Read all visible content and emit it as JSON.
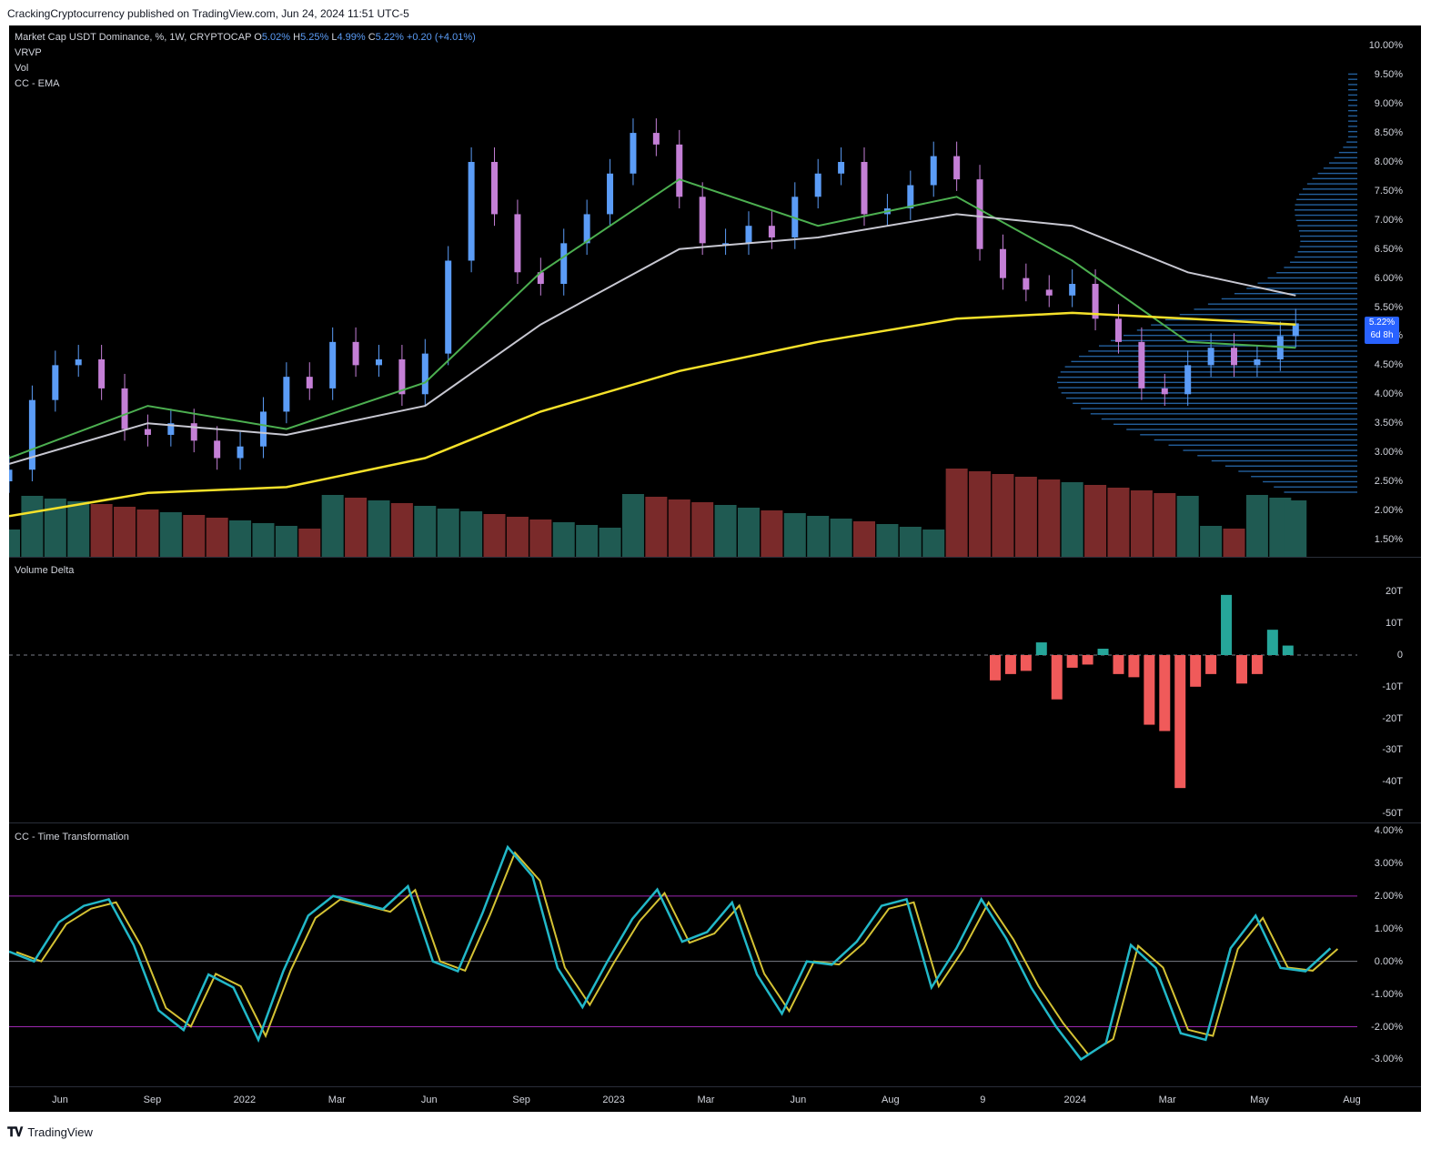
{
  "header": {
    "published": "CrackingCryptocurrency published on TradingView.com, Jun 24, 2024 11:51 UTC-5"
  },
  "main_legend": {
    "symbol": "Market Cap USDT Dominance, %, 1W, CRYPTOCAP",
    "o_label": "O",
    "o": "5.02%",
    "h_label": "H",
    "h": "5.25%",
    "l_label": "L",
    "l": "4.99%",
    "c_label": "C",
    "c": "5.22%",
    "chg": "+0.20 (+4.01%)",
    "indicators": [
      "VRVP",
      "Vol",
      "CC - EMA"
    ]
  },
  "price_box": {
    "price": "5.22%",
    "countdown": "6d 8h"
  },
  "panel2_title": "Volume Delta",
  "panel3_title": "CC - Time Transformation",
  "footer": {
    "brand": "TradingView"
  },
  "colors": {
    "up": "#5b9cf6",
    "down": "#c47fd6",
    "ema_fast": "#4caf50",
    "ema_mid": "#c7c7d1",
    "ema_slow": "#f5e12a",
    "vol_up": "#1f5a52",
    "vol_down": "#7a2a2a",
    "vrvp": "#2f7fd0",
    "delta_up": "#26a69a",
    "delta_down": "#f05a5a",
    "osc_fast": "#22b8c8",
    "osc_slow": "#d4c234",
    "band": "#9c27b0"
  },
  "chart_data": [
    {
      "type": "line",
      "title": "Market Cap USDT Dominance, %, 1W, CRYPTOCAP",
      "y_unit": "%",
      "ylim": [
        1.2,
        10.35
      ],
      "y_ticks": [
        "10.00%",
        "9.50%",
        "9.00%",
        "8.50%",
        "8.00%",
        "7.50%",
        "7.00%",
        "6.50%",
        "6.00%",
        "5.50%",
        "5.00%",
        "4.50%",
        "4.00%",
        "3.50%",
        "3.00%",
        "2.50%",
        "2.00%",
        "1.50%"
      ],
      "x_ticks": [
        "Jun",
        "Sep",
        "2022",
        "Mar",
        "Jun",
        "Sep",
        "2023",
        "Mar",
        "Jun",
        "Aug",
        "9",
        "2024",
        "Mar",
        "May",
        "Aug"
      ],
      "x_range": [
        "2021-04-12",
        "2024-08-19"
      ],
      "series": [
        {
          "name": "",
          "dates": [
            "2021-04-12",
            "2021-05-03",
            "2021-05-24",
            "2021-06-14",
            "2021-07-05",
            "2021-07-26",
            "2021-08-16",
            "2021-09-06",
            "2021-09-27",
            "2021-10-18",
            "2021-11-08",
            "2021-11-29",
            "2021-12-20",
            "2022-01-10",
            "2022-01-31",
            "2022-02-21",
            "2022-03-14",
            "2022-04-04",
            "2022-04-25",
            "2022-05-16",
            "2022-06-06",
            "2022-06-27",
            "2022-07-18",
            "2022-08-08",
            "2022-08-29",
            "2022-09-19",
            "2022-10-10",
            "2022-10-31",
            "2022-11-21",
            "2022-12-12",
            "2023-01-02",
            "2023-01-23",
            "2023-02-13",
            "2023-03-06",
            "2023-03-27",
            "2023-04-17",
            "2023-05-08",
            "2023-05-29",
            "2023-06-19",
            "2023-07-10",
            "2023-07-31",
            "2023-08-21",
            "2023-09-11",
            "2023-10-02",
            "2023-10-23",
            "2023-11-13",
            "2023-12-04",
            "2023-12-25",
            "2024-01-15",
            "2024-02-05",
            "2024-02-26",
            "2024-03-18",
            "2024-04-08",
            "2024-04-29",
            "2024-05-20",
            "2024-06-10",
            "2024-06-24"
          ],
          "close": [
            2.7,
            3.9,
            4.5,
            4.6,
            4.1,
            3.4,
            3.3,
            3.5,
            3.2,
            2.9,
            3.1,
            3.7,
            4.3,
            4.1,
            4.9,
            4.5,
            4.6,
            4.0,
            4.7,
            6.3,
            8.0,
            7.1,
            6.1,
            5.9,
            6.6,
            7.1,
            7.8,
            8.5,
            8.3,
            7.4,
            6.6,
            6.6,
            6.9,
            6.7,
            7.4,
            7.8,
            8.0,
            7.1,
            7.2,
            7.6,
            8.1,
            7.7,
            6.5,
            6.0,
            5.8,
            5.7,
            5.9,
            5.3,
            4.9,
            4.1,
            4.0,
            4.5,
            4.8,
            4.5,
            4.6,
            5.0,
            5.22
          ]
        },
        {
          "name": "",
          "values_note": "",
          "dates": [
            "2021-04-12",
            "2021-08-16",
            "2021-12-20",
            "2022-04-25",
            "2022-08-08",
            "2022-12-12",
            "2023-04-17",
            "2023-08-21",
            "2023-12-04",
            "2024-03-18",
            "2024-06-24"
          ],
          "values": [
            2.9,
            3.8,
            3.4,
            4.2,
            6.1,
            7.7,
            6.9,
            7.4,
            6.3,
            4.9,
            4.8
          ]
        },
        {
          "name": "",
          "dates": [
            "2021-04-12",
            "2021-08-16",
            "2021-12-20",
            "2022-04-25",
            "2022-08-08",
            "2022-12-12",
            "2023-04-17",
            "2023-08-21",
            "2023-12-04",
            "2024-03-18",
            "2024-06-24"
          ],
          "values": [
            2.8,
            3.5,
            3.3,
            3.8,
            5.2,
            6.5,
            6.7,
            7.1,
            6.9,
            6.1,
            5.7
          ]
        },
        {
          "name": "",
          "dates": [
            "2021-04-12",
            "2021-08-16",
            "2021-12-20",
            "2022-04-25",
            "2022-08-08",
            "2022-12-12",
            "2023-04-17",
            "2023-08-21",
            "2023-12-04",
            "2024-03-18",
            "2024-06-24"
          ],
          "values": [
            1.9,
            2.3,
            2.4,
            2.9,
            3.7,
            4.4,
            4.9,
            5.3,
            5.4,
            5.3,
            5.2
          ]
        }
      ]
    },
    {
      "type": "bar",
      "title": "Volume Delta",
      "y_ticks": [
        "20T",
        "10T",
        "0",
        "-10T",
        "-20T",
        "-30T",
        "-40T",
        "-50T"
      ],
      "ylim": [
        -50,
        25
      ],
      "dates": [
        "2023-09-25",
        "2023-10-09",
        "2023-10-23",
        "2023-11-06",
        "2023-11-20",
        "2023-12-04",
        "2023-12-18",
        "2024-01-01",
        "2024-01-15",
        "2024-01-29",
        "2024-02-12",
        "2024-02-26",
        "2024-03-11",
        "2024-03-25",
        "2024-04-08",
        "2024-04-22",
        "2024-05-06",
        "2024-05-20",
        "2024-06-03",
        "2024-06-17"
      ],
      "values": [
        -8,
        -6,
        -5,
        4,
        -14,
        -4,
        -3,
        2,
        -6,
        -7,
        -22,
        -24,
        -42,
        -10,
        -6,
        19,
        -9,
        -6,
        8,
        3
      ]
    },
    {
      "type": "line",
      "title": "CC - Time Transformation",
      "y_ticks": [
        "4.00%",
        "3.00%",
        "2.00%",
        "1.00%",
        "0.00%",
        "-1.00%",
        "-2.00%",
        "-3.00%"
      ],
      "ylim": [
        -3.6,
        4.0
      ],
      "bands": [
        2.0,
        0.0,
        -2.0
      ],
      "series": [
        {
          "name": "",
          "values": [
            0.3,
            0.0,
            1.2,
            1.7,
            1.9,
            0.5,
            -1.5,
            -2.1,
            -0.4,
            -0.8,
            -2.4,
            -0.3,
            1.4,
            2.0,
            1.8,
            1.6,
            2.3,
            0.0,
            -0.3,
            1.5,
            3.5,
            2.6,
            -0.2,
            -1.4,
            0.0,
            1.3,
            2.2,
            0.6,
            0.9,
            1.8,
            -0.4,
            -1.6,
            0.0,
            -0.1,
            0.6,
            1.7,
            1.9,
            -0.8,
            0.4,
            1.9,
            0.7,
            -0.8,
            -2.0,
            -3.0,
            -2.5,
            0.5,
            -0.2,
            -2.2,
            -2.4,
            0.4,
            1.4,
            -0.2,
            -0.3,
            0.4
          ]
        }
      ]
    }
  ]
}
